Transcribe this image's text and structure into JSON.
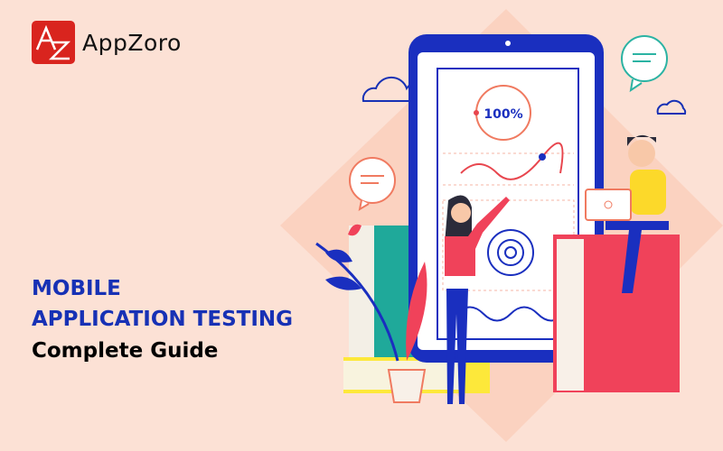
{
  "brand": {
    "name": "AppZoro",
    "logo_letters": "AZ",
    "color": "#d9241e"
  },
  "headline": {
    "line1": "MOBILE",
    "line2": "APPLICATION TESTING",
    "line3": "Complete Guide",
    "accent_color": "#1731b5"
  },
  "illustration": {
    "progress_label": "100%",
    "progress_percent": 100
  }
}
